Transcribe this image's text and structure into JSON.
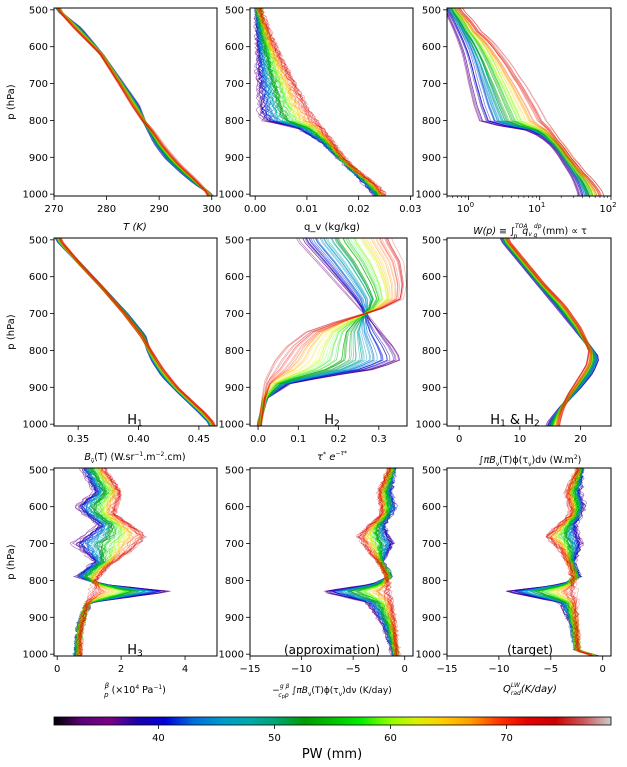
{
  "figure": {
    "colorbar": {
      "label": "PW (mm)",
      "range": [
        31,
        79
      ],
      "ticks": [
        40,
        50,
        60,
        70
      ],
      "colormap": "nipy_spectral",
      "tick_labels": [
        "40",
        "50",
        "60",
        "70"
      ]
    }
  },
  "chart_data": [
    {
      "type": "line",
      "panel": "a",
      "ylabel": "p (hPa)",
      "xlabel": "T (K)",
      "xlim": [
        270,
        301
      ],
      "ylim": [
        1005,
        495
      ],
      "xticks": [
        270,
        280,
        290,
        300
      ],
      "yticks": [
        500,
        600,
        700,
        800,
        900,
        1000
      ],
      "xtick_labels": [
        "270",
        "280",
        "290",
        "300"
      ],
      "ytick_labels": [
        "500",
        "600",
        "700",
        "800",
        "900",
        "1000"
      ],
      "annotation": "",
      "profiles": {
        "low_pw": {
          "pw": 35,
          "x": [
            270.5,
            275,
            279,
            283,
            286,
            287,
            288,
            289,
            291,
            294,
            297,
            300
          ],
          "y": [
            500,
            550,
            620,
            700,
            760,
            800,
            830,
            860,
            900,
            940,
            975,
            1000
          ]
        },
        "high_pw": {
          "pw": 75,
          "x": [
            271,
            274,
            279,
            282.5,
            285,
            287,
            289,
            291,
            294,
            297,
            299.5
          ],
          "y": [
            500,
            550,
            620,
            700,
            760,
            800,
            830,
            870,
            920,
            960,
            1000
          ]
        }
      }
    },
    {
      "type": "line",
      "panel": "b",
      "ylabel": "",
      "xlabel": "q_v (kg/kg)",
      "xlim": [
        -0.001,
        0.0305
      ],
      "ylim": [
        1005,
        495
      ],
      "xticks": [
        0.0,
        0.01,
        0.02,
        0.03
      ],
      "yticks": [
        500,
        600,
        700,
        800,
        900,
        1000
      ],
      "xtick_labels": [
        "0.00",
        "0.01",
        "0.02",
        "0.03"
      ],
      "ytick_labels": [
        "500",
        "600",
        "700",
        "800",
        "900",
        "1000"
      ],
      "annotation": "",
      "profiles": {
        "low_pw": {
          "pw": 35,
          "x": [
            0.0003,
            0.0004,
            0.0005,
            0.0008,
            0.0015,
            0.008,
            0.013,
            0.016,
            0.019,
            0.021,
            0.023
          ],
          "y": [
            500,
            600,
            700,
            780,
            800,
            820,
            860,
            900,
            940,
            970,
            1000
          ]
        },
        "high_pw": {
          "pw": 75,
          "x": [
            0.001,
            0.004,
            0.007,
            0.009,
            0.011,
            0.013,
            0.015,
            0.017,
            0.02,
            0.023,
            0.025
          ],
          "y": [
            500,
            600,
            680,
            730,
            780,
            820,
            860,
            900,
            940,
            970,
            1000
          ]
        }
      }
    },
    {
      "type": "line",
      "panel": "c",
      "ylabel": "",
      "xlabel_text": "W(p) ≡ ∫",
      "xlabel_sub": "p",
      "xlabel_sup": "TOA",
      "xlabel_mid": "q",
      "xlabel_v": "v",
      "xlabel_frac_num": "dp",
      "xlabel_frac_den": "g",
      "xlabel_end": "(mm)  ∝ τ",
      "xscale": "log",
      "xlim": [
        0.5,
        100
      ],
      "ylim": [
        1005,
        495
      ],
      "xticks": [
        1,
        10,
        100
      ],
      "yticks": [
        500,
        600,
        700,
        800,
        900,
        1000
      ],
      "xtick_base": [
        "10",
        "10",
        "10"
      ],
      "xtick_exp": [
        "0",
        "1",
        "2"
      ],
      "ytick_labels": [
        "500",
        "600",
        "700",
        "800",
        "900",
        "1000"
      ],
      "annotation": "",
      "profiles": {
        "low_pw": {
          "pw": 35,
          "x": [
            0.5,
            0.7,
            0.9,
            1.1,
            1.3,
            1.6,
            8,
            16,
            24,
            32,
            38
          ],
          "y": [
            500,
            560,
            620,
            700,
            760,
            810,
            830,
            870,
            920,
            960,
            1000
          ]
        },
        "high_pw": {
          "pw": 75,
          "x": [
            0.8,
            1.5,
            3,
            5,
            8,
            12,
            18,
            28,
            42,
            60,
            78
          ],
          "y": [
            500,
            560,
            620,
            680,
            740,
            800,
            850,
            900,
            940,
            970,
            1000
          ]
        }
      }
    },
    {
      "type": "line",
      "panel": "d",
      "ylabel": "p (hPa)",
      "xlabel": "B_ν̃ (T) (W.sr⁻¹.m⁻².cm)",
      "xlabel_b": "B",
      "xlabel_sub": "ν̃",
      "xlabel_rest": "(T) (W.sr",
      "xlabel_e1": "−1",
      "xlabel_mid": ".m",
      "xlabel_e2": "−2",
      "xlabel_end": ".cm)",
      "xlim": [
        0.33,
        0.465
      ],
      "ylim": [
        1005,
        495
      ],
      "xticks": [
        0.35,
        0.4,
        0.45
      ],
      "yticks": [
        500,
        600,
        700,
        800,
        900,
        1000
      ],
      "xtick_labels": [
        "0.35",
        "0.40",
        "0.45"
      ],
      "ytick_labels": [
        "500",
        "600",
        "700",
        "800",
        "900",
        "1000"
      ],
      "annotation": "H₁",
      "annotation_main": "H",
      "annotation_sub": "1",
      "profiles": {
        "low_pw": {
          "pw": 35,
          "x": [
            0.332,
            0.35,
            0.37,
            0.39,
            0.405,
            0.408,
            0.412,
            0.42,
            0.435,
            0.448,
            0.46
          ],
          "y": [
            500,
            560,
            630,
            700,
            760,
            800,
            830,
            870,
            920,
            960,
            1000
          ]
        },
        "high_pw": {
          "pw": 75,
          "x": [
            0.335,
            0.35,
            0.37,
            0.388,
            0.402,
            0.41,
            0.42,
            0.432,
            0.445,
            0.455,
            0.463
          ],
          "y": [
            500,
            560,
            630,
            700,
            760,
            800,
            850,
            900,
            940,
            970,
            1000
          ]
        }
      }
    },
    {
      "type": "line",
      "panel": "e",
      "ylabel": "",
      "xlabel_main": "τ",
      "xlabel_star": "*",
      "xlabel_mid": " e",
      "xlabel_exp": "−τ*",
      "xlim": [
        -0.02,
        0.37
      ],
      "ylim": [
        1005,
        495
      ],
      "xticks": [
        0,
        0.1,
        0.2,
        0.3
      ],
      "yticks": [
        500,
        600,
        700,
        800,
        900,
        1000
      ],
      "xtick_labels": [
        "0.0",
        "0.1",
        "0.2",
        "0.3"
      ],
      "ytick_labels": [
        "500",
        "600",
        "700",
        "800",
        "900",
        "1000"
      ],
      "annotation": "H₂",
      "annotation_main": "H",
      "annotation_sub": "2",
      "profiles": {
        "low_pw": {
          "pw": 35,
          "x": [
            0.1,
            0.15,
            0.2,
            0.25,
            0.3,
            0.34,
            0.36,
            0.3,
            0.18,
            0.08,
            0.02,
            0.002
          ],
          "y": [
            500,
            560,
            620,
            680,
            740,
            790,
            825,
            850,
            870,
            890,
            930,
            1000
          ]
        },
        "high_pw": {
          "pw": 75,
          "x": [
            0.33,
            0.36,
            0.367,
            0.36,
            0.3,
            0.2,
            0.12,
            0.07,
            0.04,
            0.02,
            0.005
          ],
          "y": [
            500,
            560,
            620,
            660,
            690,
            720,
            750,
            790,
            830,
            880,
            1000
          ]
        }
      }
    },
    {
      "type": "line",
      "panel": "f",
      "ylabel": "",
      "xlabel_int": "∫πB",
      "xlabel_sub1": "ν",
      "xlabel_mid": "(T)ϕ(τ",
      "xlabel_sub2": "ν",
      "xlabel_rest": ")dν (W.m",
      "xlabel_exp": "2",
      "xlabel_end": ")",
      "xlim": [
        -2,
        25
      ],
      "ylim": [
        1005,
        495
      ],
      "xticks": [
        0,
        10,
        20
      ],
      "yticks": [
        500,
        600,
        700,
        800,
        900,
        1000
      ],
      "xtick_labels": [
        "0",
        "10",
        "20"
      ],
      "ytick_labels": [
        "500",
        "600",
        "700",
        "800",
        "900",
        "1000"
      ],
      "annotation": "H₁ & H₂",
      "annotation_a": "H",
      "annotation_sub1": "1",
      "annotation_amp": " & H",
      "annotation_sub2": "2",
      "profiles": {
        "low_pw": {
          "pw": 35,
          "x": [
            7,
            10,
            13,
            16,
            19,
            21.5,
            23,
            22,
            20,
            17,
            14.5
          ],
          "y": [
            500,
            560,
            620,
            680,
            740,
            790,
            820,
            860,
            900,
            950,
            1000
          ]
        },
        "high_pw": {
          "pw": 75,
          "x": [
            8,
            11,
            14,
            17.5,
            20,
            21.5,
            21,
            19.5,
            18,
            17,
            16.5
          ],
          "y": [
            500,
            560,
            620,
            680,
            740,
            800,
            840,
            880,
            920,
            960,
            1000
          ]
        }
      }
    },
    {
      "type": "line",
      "panel": "g",
      "ylabel": "p (hPa)",
      "xlabel_frac_num": "β",
      "xlabel_frac_den": "p",
      "xlabel_rest": " (×10",
      "xlabel_e1": "4",
      "xlabel_mid": " Pa",
      "xlabel_e2": "−1",
      "xlabel_end": ")",
      "xlim": [
        -0.1,
        5
      ],
      "ylim": [
        1005,
        495
      ],
      "xticks": [
        0,
        2,
        4
      ],
      "yticks": [
        500,
        600,
        700,
        800,
        900,
        1000
      ],
      "xtick_labels": [
        "0",
        "2",
        "4"
      ],
      "ytick_labels": [
        "500",
        "600",
        "700",
        "800",
        "900",
        "1000"
      ],
      "annotation": "H₃",
      "annotation_main": "H",
      "annotation_sub": "3",
      "profiles": {
        "low_pw": {
          "pw": 35,
          "x": [
            0.8,
            1.2,
            0.6,
            1.3,
            0.5,
            1.2,
            0.6,
            1.4,
            3.6,
            1.0,
            0.7,
            0.6
          ],
          "y": [
            500,
            560,
            600,
            650,
            700,
            750,
            790,
            810,
            830,
            860,
            920,
            1000
          ]
        },
        "high_pw": {
          "pw": 75,
          "x": [
            1.5,
            2.0,
            1.8,
            2.8,
            2.3,
            1.6,
            1.2,
            1.0,
            0.8,
            0.7,
            0.7
          ],
          "y": [
            500,
            560,
            620,
            680,
            720,
            760,
            800,
            840,
            900,
            950,
            1000
          ]
        }
      }
    },
    {
      "type": "line",
      "panel": "h",
      "ylabel": "",
      "xlabel_lead": "−",
      "xlabel_frac_num": "g β",
      "xlabel_frac_den": "c",
      "xlabel_den_sub": "p",
      "xlabel_den_end": "p",
      "xlabel_int": "∫πB",
      "xlabel_sub1": "ν",
      "xlabel_mid": "(T)ϕ(τ",
      "xlabel_sub2": "ν",
      "xlabel_end": ")dν (K/day)",
      "xlim": [
        -15,
        0.8
      ],
      "ylim": [
        1005,
        495
      ],
      "xticks": [
        -15,
        -10,
        -5,
        0
      ],
      "yticks": [
        500,
        600,
        700,
        800,
        900,
        1000
      ],
      "xtick_labels": [
        "−15",
        "−10",
        "−5",
        "0"
      ],
      "ytick_labels": [
        "500",
        "600",
        "700",
        "800",
        "900",
        "1000"
      ],
      "annotation": "(approximation)",
      "profiles": {
        "low_pw": {
          "pw": 35,
          "x": [
            -1.0,
            -1.4,
            -0.9,
            -2.0,
            -1.0,
            -2.2,
            -1.3,
            -3.0,
            -8.0,
            -3.5,
            -2.0,
            -1.0
          ],
          "y": [
            500,
            560,
            600,
            650,
            700,
            750,
            790,
            810,
            830,
            860,
            920,
            1000
          ]
        },
        "high_pw": {
          "pw": 75,
          "x": [
            -1.5,
            -2.5,
            -2.2,
            -4.5,
            -3.5,
            -2.2,
            -1.6,
            -1.2,
            -1.0,
            -0.8,
            -0.7
          ],
          "y": [
            500,
            560,
            620,
            680,
            720,
            760,
            800,
            840,
            900,
            950,
            1000
          ]
        }
      }
    },
    {
      "type": "line",
      "panel": "i",
      "ylabel": "",
      "xlabel_main": "Q",
      "xlabel_sub": "rad",
      "xlabel_sup": "LW",
      "xlabel_end": "(K/day)",
      "xlim": [
        -15,
        0.8
      ],
      "ylim": [
        1005,
        495
      ],
      "xticks": [
        -15,
        -10,
        -5,
        0
      ],
      "yticks": [
        500,
        600,
        700,
        800,
        900,
        1000
      ],
      "xtick_labels": [
        "−15",
        "−10",
        "−5",
        "0"
      ],
      "ytick_labels": [
        "500",
        "600",
        "700",
        "800",
        "900",
        "1000"
      ],
      "annotation": "(target)",
      "profiles": {
        "low_pw": {
          "pw": 35,
          "x": [
            -2.0,
            -2.2,
            -1.8,
            -2.6,
            -2.0,
            -2.8,
            -2.2,
            -3.8,
            -9.5,
            -4.0,
            -3.0,
            -2.5,
            -0.5
          ],
          "y": [
            500,
            560,
            600,
            650,
            700,
            750,
            790,
            810,
            830,
            860,
            920,
            990,
            1003
          ]
        },
        "high_pw": {
          "pw": 75,
          "x": [
            -2.4,
            -3.5,
            -3.0,
            -5.5,
            -4.0,
            -3.2,
            -2.8,
            -2.6,
            -2.5,
            -2.4,
            -2.4,
            -1.0
          ],
          "y": [
            500,
            560,
            620,
            680,
            720,
            760,
            800,
            840,
            900,
            950,
            990,
            1003
          ]
        }
      }
    }
  ]
}
